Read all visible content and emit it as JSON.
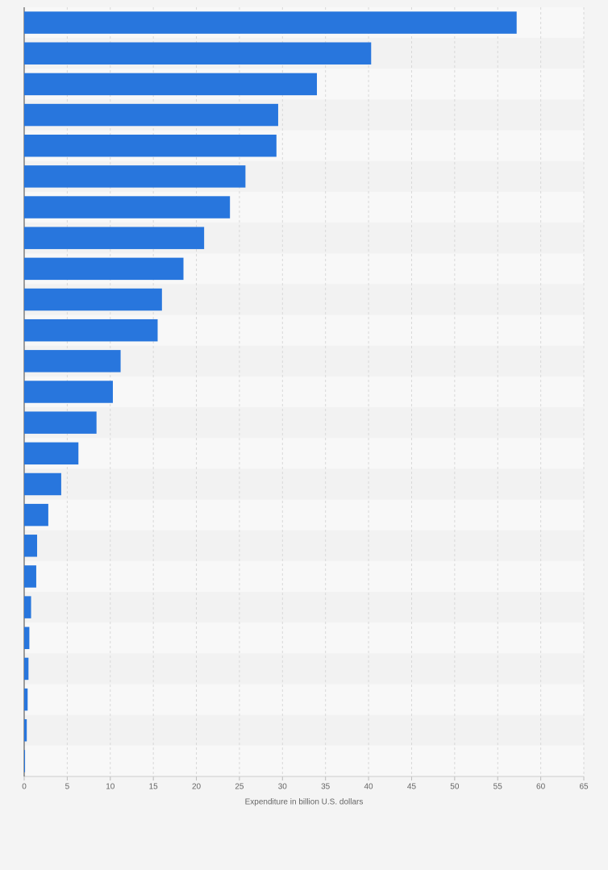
{
  "chart_data": {
    "type": "bar",
    "orientation": "horizontal",
    "x_label": "Expenditure in billion U.S. dollars",
    "categories": [
      null,
      null,
      null,
      null,
      null,
      null,
      null,
      null,
      null,
      null,
      null,
      null,
      null,
      null,
      null,
      null,
      null,
      null,
      null,
      null,
      null,
      null,
      null,
      null,
      null
    ],
    "values": [
      57.2,
      40.3,
      34.0,
      29.5,
      29.3,
      25.7,
      23.9,
      20.9,
      18.5,
      16.0,
      15.5,
      11.2,
      10.3,
      8.4,
      6.3,
      4.3,
      2.8,
      1.5,
      1.4,
      0.8,
      0.6,
      0.5,
      0.4,
      0.3,
      0.1
    ],
    "color": "#2876dd",
    "xlim": [
      0,
      65
    ],
    "xticks": [
      0,
      5,
      10,
      15,
      20,
      25,
      30,
      35,
      40,
      45,
      50,
      55,
      60,
      65
    ],
    "grid": true
  }
}
